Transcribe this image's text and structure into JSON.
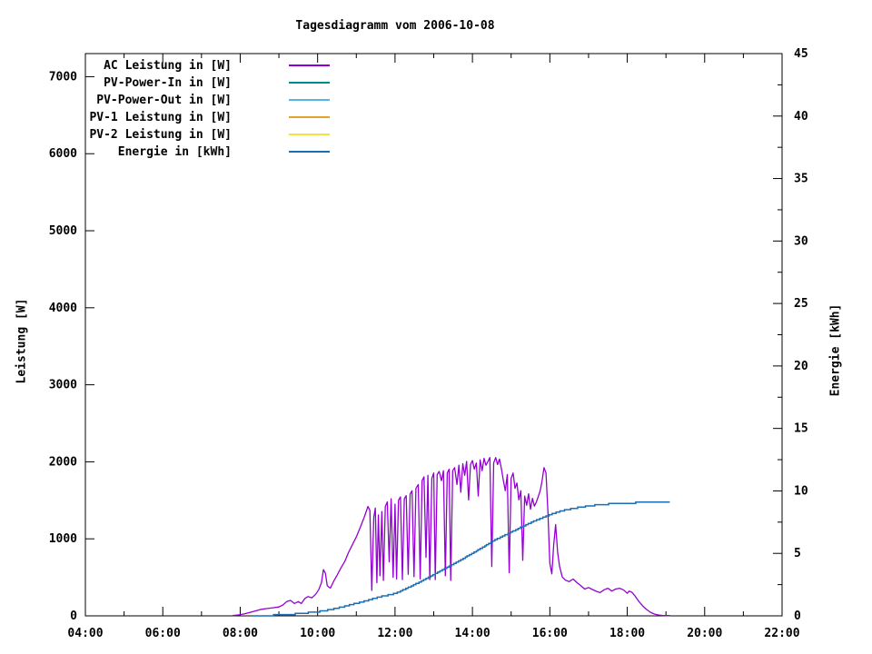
{
  "chart_data": {
    "type": "line",
    "title": "Tagesdiagramm vom 2006-10-08",
    "grid": false,
    "legend_position": "top-left-inside",
    "x_axis": {
      "label": "",
      "start_hour": 4,
      "end_hour": 22,
      "major_tick_every_hours": 2,
      "minor_tick_every_hours": 1,
      "tick_labels": [
        "04:00",
        "06:00",
        "08:00",
        "10:00",
        "12:00",
        "14:00",
        "16:00",
        "18:00",
        "20:00",
        "22:00"
      ]
    },
    "y_axis": {
      "label": "Leistung [W]",
      "min": 0,
      "max": 7300,
      "tick_step": 1000,
      "tick_values": [
        0,
        1000,
        2000,
        3000,
        4000,
        5000,
        6000,
        7000
      ],
      "tick_labels": [
        "0",
        "1000",
        "2000",
        "3000",
        "4000",
        "5000",
        "6000",
        "7000"
      ]
    },
    "y2_axis": {
      "label": "Energie [kWh]",
      "min": 0,
      "max": 45,
      "tick_step": 5,
      "minor_tick_step": 2.5,
      "tick_values": [
        0,
        5,
        10,
        15,
        20,
        25,
        30,
        35,
        40,
        45
      ],
      "tick_labels": [
        "0",
        "5",
        "10",
        "15",
        "20",
        "25",
        "30",
        "35",
        "40",
        "45"
      ]
    },
    "legend": [
      {
        "label": "AC Leistung in [W]",
        "color": "#9400d3"
      },
      {
        "label": "PV-Power-In in [W]",
        "color": "#008b8b"
      },
      {
        "label": "PV-Power-Out in [W]",
        "color": "#56b4e9"
      },
      {
        "label": "PV-1 Leistung in [W]",
        "color": "#e0a32e"
      },
      {
        "label": "PV-2 Leistung in [W]",
        "color": "#f2e43c"
      },
      {
        "label": "Energie in [kWh]",
        "color": "#1c6eb4"
      }
    ],
    "series": [
      {
        "name": "AC Leistung in [W]",
        "axis": "y",
        "color": "#9400d3",
        "style": "line",
        "points": [
          [
            7.8,
            5
          ],
          [
            7.95,
            12
          ],
          [
            8.1,
            25
          ],
          [
            8.25,
            45
          ],
          [
            8.4,
            65
          ],
          [
            8.55,
            85
          ],
          [
            8.7,
            95
          ],
          [
            8.85,
            105
          ],
          [
            9.0,
            115
          ],
          [
            9.1,
            140
          ],
          [
            9.2,
            185
          ],
          [
            9.3,
            200
          ],
          [
            9.4,
            160
          ],
          [
            9.5,
            185
          ],
          [
            9.58,
            160
          ],
          [
            9.67,
            225
          ],
          [
            9.75,
            250
          ],
          [
            9.85,
            235
          ],
          [
            9.95,
            280
          ],
          [
            10.03,
            340
          ],
          [
            10.1,
            430
          ],
          [
            10.15,
            600
          ],
          [
            10.2,
            555
          ],
          [
            10.25,
            390
          ],
          [
            10.33,
            360
          ],
          [
            10.42,
            455
          ],
          [
            10.5,
            525
          ],
          [
            10.6,
            620
          ],
          [
            10.7,
            705
          ],
          [
            10.8,
            825
          ],
          [
            10.9,
            925
          ],
          [
            11.0,
            1025
          ],
          [
            11.1,
            1145
          ],
          [
            11.2,
            1275
          ],
          [
            11.3,
            1420
          ],
          [
            11.35,
            1370
          ],
          [
            11.4,
            330
          ],
          [
            11.45,
            1280
          ],
          [
            11.49,
            1400
          ],
          [
            11.53,
            430
          ],
          [
            11.57,
            1310
          ],
          [
            11.61,
            520
          ],
          [
            11.66,
            1355
          ],
          [
            11.7,
            460
          ],
          [
            11.75,
            1420
          ],
          [
            11.8,
            1480
          ],
          [
            11.85,
            700
          ],
          [
            11.9,
            1520
          ],
          [
            11.95,
            500
          ],
          [
            12.0,
            1450
          ],
          [
            12.04,
            480
          ],
          [
            12.09,
            1500
          ],
          [
            12.14,
            1545
          ],
          [
            12.19,
            470
          ],
          [
            12.24,
            1520
          ],
          [
            12.29,
            1560
          ],
          [
            12.34,
            540
          ],
          [
            12.39,
            1580
          ],
          [
            12.44,
            1625
          ],
          [
            12.49,
            510
          ],
          [
            12.54,
            1655
          ],
          [
            12.6,
            1705
          ],
          [
            12.65,
            480
          ],
          [
            12.7,
            1755
          ],
          [
            12.75,
            1805
          ],
          [
            12.8,
            760
          ],
          [
            12.85,
            1825
          ],
          [
            12.9,
            470
          ],
          [
            12.95,
            1785
          ],
          [
            13.0,
            1855
          ],
          [
            13.04,
            470
          ],
          [
            13.09,
            1835
          ],
          [
            13.14,
            1875
          ],
          [
            13.2,
            1755
          ],
          [
            13.25,
            1885
          ],
          [
            13.3,
            520
          ],
          [
            13.35,
            1855
          ],
          [
            13.4,
            1905
          ],
          [
            13.44,
            460
          ],
          [
            13.49,
            1885
          ],
          [
            13.54,
            1925
          ],
          [
            13.6,
            1705
          ],
          [
            13.65,
            1955
          ],
          [
            13.7,
            1605
          ],
          [
            13.75,
            1975
          ],
          [
            13.8,
            1825
          ],
          [
            13.85,
            2005
          ],
          [
            13.9,
            1505
          ],
          [
            13.95,
            1965
          ],
          [
            14.0,
            2015
          ],
          [
            14.05,
            1905
          ],
          [
            14.1,
            1985
          ],
          [
            14.15,
            1555
          ],
          [
            14.2,
            2025
          ],
          [
            14.25,
            1885
          ],
          [
            14.3,
            2045
          ],
          [
            14.35,
            1955
          ],
          [
            14.4,
            2005
          ],
          [
            14.45,
            2055
          ],
          [
            14.5,
            640
          ],
          [
            14.55,
            1985
          ],
          [
            14.6,
            2055
          ],
          [
            14.65,
            1965
          ],
          [
            14.7,
            2035
          ],
          [
            14.75,
            1905
          ],
          [
            14.8,
            1755
          ],
          [
            14.85,
            1625
          ],
          [
            14.9,
            1835
          ],
          [
            14.95,
            560
          ],
          [
            15.0,
            1785
          ],
          [
            15.05,
            1855
          ],
          [
            15.1,
            1655
          ],
          [
            15.15,
            1725
          ],
          [
            15.2,
            1505
          ],
          [
            15.25,
            1625
          ],
          [
            15.3,
            720
          ],
          [
            15.35,
            1555
          ],
          [
            15.4,
            1435
          ],
          [
            15.45,
            1585
          ],
          [
            15.5,
            1385
          ],
          [
            15.55,
            1525
          ],
          [
            15.6,
            1425
          ],
          [
            15.65,
            1475
          ],
          [
            15.7,
            1545
          ],
          [
            15.75,
            1625
          ],
          [
            15.8,
            1755
          ],
          [
            15.85,
            1925
          ],
          [
            15.9,
            1855
          ],
          [
            15.95,
            1355
          ],
          [
            16.0,
            685
          ],
          [
            16.05,
            545
          ],
          [
            16.1,
            925
          ],
          [
            16.15,
            1185
          ],
          [
            16.2,
            825
          ],
          [
            16.25,
            645
          ],
          [
            16.32,
            505
          ],
          [
            16.4,
            465
          ],
          [
            16.5,
            445
          ],
          [
            16.6,
            478
          ],
          [
            16.7,
            432
          ],
          [
            16.8,
            392
          ],
          [
            16.9,
            348
          ],
          [
            17.0,
            368
          ],
          [
            17.1,
            342
          ],
          [
            17.2,
            318
          ],
          [
            17.3,
            302
          ],
          [
            17.4,
            338
          ],
          [
            17.5,
            358
          ],
          [
            17.6,
            322
          ],
          [
            17.7,
            348
          ],
          [
            17.8,
            358
          ],
          [
            17.9,
            338
          ],
          [
            18.0,
            292
          ],
          [
            18.05,
            322
          ],
          [
            18.12,
            305
          ],
          [
            18.2,
            258
          ],
          [
            18.3,
            188
          ],
          [
            18.4,
            128
          ],
          [
            18.5,
            82
          ],
          [
            18.6,
            46
          ],
          [
            18.7,
            24
          ],
          [
            18.8,
            12
          ],
          [
            18.9,
            6
          ],
          [
            19.0,
            4
          ],
          [
            19.1,
            3
          ]
        ]
      },
      {
        "name": "PV-Power-In in [W]",
        "axis": "y",
        "color": "#008b8b",
        "style": "line",
        "points": []
      },
      {
        "name": "PV-Power-Out in [W]",
        "axis": "y",
        "color": "#56b4e9",
        "style": "line",
        "points": []
      },
      {
        "name": "PV-1 Leistung in [W]",
        "axis": "y",
        "color": "#e0a32e",
        "style": "line",
        "points": []
      },
      {
        "name": "PV-2 Leistung in [W]",
        "axis": "y",
        "color": "#f2e43c",
        "style": "line",
        "points": []
      },
      {
        "name": "Energie in [kWh]",
        "axis": "y2",
        "color": "#1c6eb4",
        "style": "steps",
        "points": [
          [
            8.3,
            0.0
          ],
          [
            8.6,
            0.02
          ],
          [
            9.0,
            0.07
          ],
          [
            9.3,
            0.12
          ],
          [
            9.6,
            0.2
          ],
          [
            10.0,
            0.33
          ],
          [
            10.3,
            0.48
          ],
          [
            10.6,
            0.68
          ],
          [
            11.0,
            1.0
          ],
          [
            11.3,
            1.25
          ],
          [
            11.6,
            1.52
          ],
          [
            12.0,
            1.78
          ],
          [
            12.3,
            2.2
          ],
          [
            12.6,
            2.65
          ],
          [
            13.0,
            3.3
          ],
          [
            13.3,
            3.8
          ],
          [
            13.6,
            4.3
          ],
          [
            14.0,
            5.0
          ],
          [
            14.3,
            5.55
          ],
          [
            14.6,
            6.1
          ],
          [
            15.0,
            6.7
          ],
          [
            15.3,
            7.15
          ],
          [
            15.6,
            7.6
          ],
          [
            16.0,
            8.1
          ],
          [
            16.3,
            8.4
          ],
          [
            16.6,
            8.6
          ],
          [
            17.0,
            8.8
          ],
          [
            17.3,
            8.9
          ],
          [
            17.6,
            8.97
          ],
          [
            18.0,
            9.03
          ],
          [
            18.4,
            9.07
          ],
          [
            18.8,
            9.1
          ],
          [
            19.1,
            9.1
          ]
        ]
      }
    ]
  }
}
